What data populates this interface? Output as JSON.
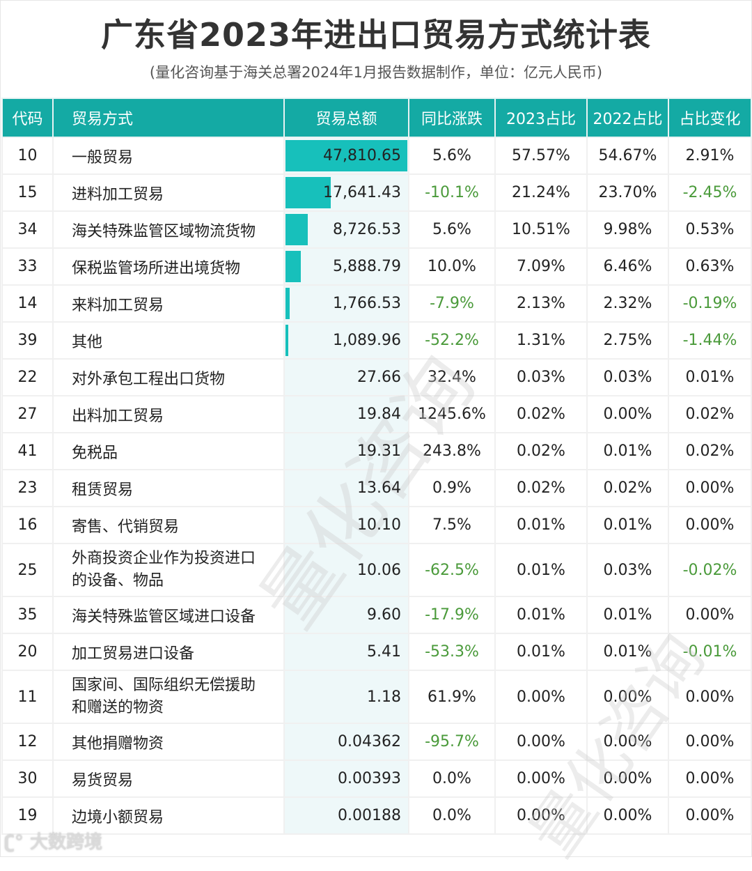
{
  "header": {
    "title": "广东省2023年进出口贸易方式统计表",
    "subtitle": "(量化咨询基于海关总署2024年1月报告数据制作，单位：亿元人民币)"
  },
  "table": {
    "columns": [
      "代码",
      "贸易方式",
      "贸易总额",
      "同比涨跌",
      "2023占比",
      "2022占比",
      "占比变化"
    ],
    "rows": [
      {
        "code": "10",
        "method": "一般贸易",
        "total": "47,810.65",
        "bar_pct": 99,
        "yoy": "5.6%",
        "share2023": "57.57%",
        "share2022": "54.67%",
        "change": "2.91%",
        "yoy_neg": false,
        "change_neg": false
      },
      {
        "code": "15",
        "method": "进料加工贸易",
        "total": "17,641.43",
        "bar_pct": 36.5,
        "yoy": "-10.1%",
        "share2023": "21.24%",
        "share2022": "23.70%",
        "change": "-2.45%",
        "yoy_neg": true,
        "change_neg": true
      },
      {
        "code": "34",
        "method": "海关特殊监管区域物流货物",
        "total": "8,726.53",
        "bar_pct": 18,
        "yoy": "5.6%",
        "share2023": "10.51%",
        "share2022": "9.98%",
        "change": "0.53%",
        "yoy_neg": false,
        "change_neg": false
      },
      {
        "code": "33",
        "method": "保税监管场所进出境货物",
        "total": "5,888.79",
        "bar_pct": 12.2,
        "yoy": "10.0%",
        "share2023": "7.09%",
        "share2022": "6.46%",
        "change": "0.63%",
        "yoy_neg": false,
        "change_neg": false
      },
      {
        "code": "14",
        "method": "来料加工贸易",
        "total": "1,766.53",
        "bar_pct": 3.6,
        "yoy": "-7.9%",
        "share2023": "2.13%",
        "share2022": "2.32%",
        "change": "-0.19%",
        "yoy_neg": true,
        "change_neg": true
      },
      {
        "code": "39",
        "method": "其他",
        "total": "1,089.96",
        "bar_pct": 2.3,
        "yoy": "-52.2%",
        "share2023": "1.31%",
        "share2022": "2.75%",
        "change": "-1.44%",
        "yoy_neg": true,
        "change_neg": true
      },
      {
        "code": "22",
        "method": "对外承包工程出口货物",
        "total": "27.66",
        "bar_pct": 0,
        "yoy": "32.4%",
        "share2023": "0.03%",
        "share2022": "0.03%",
        "change": "0.01%",
        "yoy_neg": false,
        "change_neg": false
      },
      {
        "code": "27",
        "method": "出料加工贸易",
        "total": "19.84",
        "bar_pct": 0,
        "yoy": "1245.6%",
        "share2023": "0.02%",
        "share2022": "0.00%",
        "change": "0.02%",
        "yoy_neg": false,
        "change_neg": false
      },
      {
        "code": "41",
        "method": "免税品",
        "total": "19.31",
        "bar_pct": 0,
        "yoy": "243.8%",
        "share2023": "0.02%",
        "share2022": "0.01%",
        "change": "0.02%",
        "yoy_neg": false,
        "change_neg": false
      },
      {
        "code": "23",
        "method": "租赁贸易",
        "total": "13.64",
        "bar_pct": 0,
        "yoy": "0.9%",
        "share2023": "0.02%",
        "share2022": "0.02%",
        "change": "0.00%",
        "yoy_neg": false,
        "change_neg": false
      },
      {
        "code": "16",
        "method": "寄售、代销贸易",
        "total": "10.10",
        "bar_pct": 0,
        "yoy": "7.5%",
        "share2023": "0.01%",
        "share2022": "0.01%",
        "change": "0.00%",
        "yoy_neg": false,
        "change_neg": false
      },
      {
        "code": "25",
        "method": "外商投资企业作为投资进口的设备、物品",
        "method_line1": "外商投资企业作为投资进口",
        "method_line2": "的设备、物品",
        "total": "10.06",
        "bar_pct": 0,
        "yoy": "-62.5%",
        "share2023": "0.01%",
        "share2022": "0.03%",
        "change": "-0.02%",
        "yoy_neg": true,
        "change_neg": true
      },
      {
        "code": "35",
        "method": "海关特殊监管区域进口设备",
        "total": "9.60",
        "bar_pct": 0,
        "yoy": "-17.9%",
        "share2023": "0.01%",
        "share2022": "0.01%",
        "change": "0.00%",
        "yoy_neg": true,
        "change_neg": false
      },
      {
        "code": "20",
        "method": "加工贸易进口设备",
        "total": "5.41",
        "bar_pct": 0,
        "yoy": "-53.3%",
        "share2023": "0.01%",
        "share2022": "0.01%",
        "change": "-0.01%",
        "yoy_neg": true,
        "change_neg": true
      },
      {
        "code": "11",
        "method": "国家间、国际组织无偿援助和赠送的物资",
        "method_line1": "国家间、国际组织无偿援助",
        "method_line2": "和赠送的物资",
        "total": "1.18",
        "bar_pct": 0,
        "yoy": "61.9%",
        "share2023": "0.00%",
        "share2022": "0.00%",
        "change": "0.00%",
        "yoy_neg": false,
        "change_neg": false
      },
      {
        "code": "12",
        "method": "其他捐赠物资",
        "total": "0.04362",
        "bar_pct": 0,
        "yoy": "-95.7%",
        "share2023": "0.00%",
        "share2022": "0.00%",
        "change": "0.00%",
        "yoy_neg": true,
        "change_neg": false
      },
      {
        "code": "30",
        "method": "易货贸易",
        "total": "0.00393",
        "bar_pct": 0,
        "yoy": "0.0%",
        "share2023": "0.00%",
        "share2022": "0.00%",
        "change": "0.00%",
        "yoy_neg": false,
        "change_neg": false
      },
      {
        "code": "19",
        "method": "边境小额贸易",
        "total": "0.00188",
        "bar_pct": 0,
        "yoy": "0.0%",
        "share2023": "0.00%",
        "share2022": "0.00%",
        "change": "0.00%",
        "yoy_neg": false,
        "change_neg": false
      }
    ]
  },
  "colors": {
    "header_bg": "#14aaa4",
    "bar": "#17c0bb",
    "total_col_bg": "#eef8f9",
    "negative_text": "#4a9a3a"
  },
  "watermarks": {
    "center": "量化咨询",
    "logo": "大数跨境"
  }
}
